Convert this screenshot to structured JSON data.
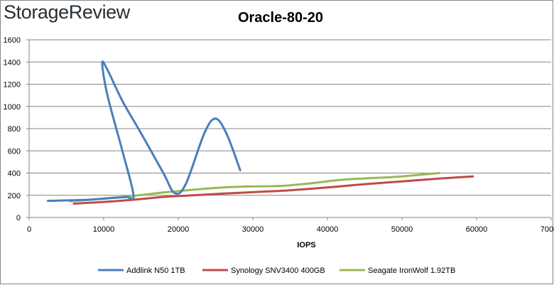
{
  "brand": {
    "logo_text": "StorageReview"
  },
  "chart_data": {
    "type": "line",
    "title": "Oracle-80-20",
    "xlabel": "IOPS",
    "ylabel": "",
    "xlim": [
      0,
      70000
    ],
    "ylim": [
      0,
      1600
    ],
    "xticks": [
      0,
      10000,
      20000,
      30000,
      40000,
      50000,
      60000,
      70000
    ],
    "yticks": [
      0,
      200,
      400,
      600,
      800,
      1000,
      1200,
      1400,
      1600
    ],
    "grid": "horizontal",
    "legend_position": "bottom",
    "series": [
      {
        "name": "Addlink N50 1TB",
        "color": "#4a7ebb",
        "points": [
          [
            2500,
            150
          ],
          [
            8000,
            160
          ],
          [
            11000,
            175
          ],
          [
            13000,
            185
          ],
          [
            14000,
            200
          ],
          [
            12500,
            600
          ],
          [
            10500,
            1100
          ],
          [
            9800,
            1390
          ],
          [
            10500,
            1330
          ],
          [
            12500,
            1050
          ],
          [
            15000,
            760
          ],
          [
            18000,
            400
          ],
          [
            19500,
            220
          ],
          [
            21000,
            300
          ],
          [
            23500,
            760
          ],
          [
            25000,
            890
          ],
          [
            26500,
            750
          ],
          [
            28300,
            425
          ]
        ]
      },
      {
        "name": "Synology SNV3400 400GB",
        "color": "#be4b48",
        "points": [
          [
            6000,
            125
          ],
          [
            10000,
            140
          ],
          [
            14000,
            160
          ],
          [
            18000,
            185
          ],
          [
            22000,
            200
          ],
          [
            26000,
            215
          ],
          [
            30000,
            228
          ],
          [
            35000,
            245
          ],
          [
            40000,
            270
          ],
          [
            45000,
            300
          ],
          [
            50000,
            325
          ],
          [
            55000,
            350
          ],
          [
            59500,
            370
          ]
        ]
      },
      {
        "name": "Seagate IronWolf 1.92TB",
        "color": "#98b954",
        "points": [
          [
            5500,
            145
          ],
          [
            10000,
            170
          ],
          [
            14000,
            195
          ],
          [
            18000,
            225
          ],
          [
            22000,
            250
          ],
          [
            26000,
            270
          ],
          [
            30000,
            280
          ],
          [
            34000,
            285
          ],
          [
            38000,
            310
          ],
          [
            42000,
            340
          ],
          [
            46000,
            355
          ],
          [
            50000,
            370
          ],
          [
            55000,
            400
          ]
        ]
      }
    ]
  }
}
